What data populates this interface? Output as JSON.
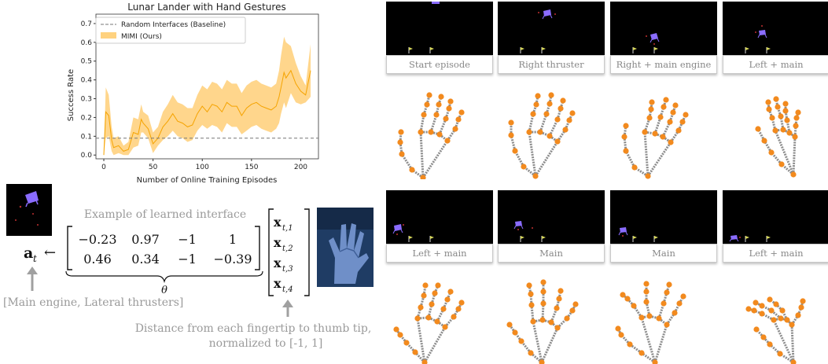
{
  "chart_data": {
    "type": "line",
    "title": "Lunar Lander with Hand Gestures",
    "xlabel": "Number of Online Training Episodes",
    "ylabel": "Success Rate",
    "xlim": [
      -8,
      218
    ],
    "ylim": [
      -0.02,
      0.75
    ],
    "xticks": [
      0,
      50,
      100,
      150,
      200
    ],
    "yticks": [
      0.0,
      0.1,
      0.2,
      0.3,
      0.4,
      0.5,
      0.6,
      0.7
    ],
    "legend_position": "top-left",
    "baseline": {
      "name": "Random Interfaces (Baseline)",
      "value": 0.09,
      "color": "#777777"
    },
    "series": [
      {
        "name": "MIMI (Ours)",
        "color": "#f5a300",
        "band_color": "#ffd27f",
        "x": [
          0,
          2,
          5,
          8,
          10,
          15,
          20,
          25,
          30,
          35,
          38,
          40,
          45,
          50,
          55,
          60,
          65,
          70,
          75,
          80,
          85,
          90,
          95,
          100,
          105,
          110,
          115,
          120,
          125,
          130,
          135,
          140,
          145,
          150,
          155,
          160,
          165,
          170,
          175,
          178,
          180,
          183,
          185,
          190,
          195,
          200,
          205,
          210
        ],
        "values": [
          0.0,
          0.23,
          0.21,
          0.08,
          0.04,
          0.05,
          0.02,
          0.03,
          0.12,
          0.11,
          0.19,
          0.17,
          0.14,
          0.06,
          0.09,
          0.15,
          0.18,
          0.22,
          0.18,
          0.17,
          0.15,
          0.16,
          0.22,
          0.26,
          0.23,
          0.27,
          0.26,
          0.23,
          0.28,
          0.26,
          0.26,
          0.21,
          0.25,
          0.27,
          0.28,
          0.26,
          0.25,
          0.24,
          0.26,
          0.31,
          0.36,
          0.44,
          0.41,
          0.45,
          0.38,
          0.34,
          0.32,
          0.45
        ],
        "lower": [
          0.0,
          0.09,
          0.1,
          0.02,
          0.0,
          0.01,
          0.0,
          0.0,
          0.04,
          0.05,
          0.12,
          0.12,
          0.09,
          0.01,
          0.05,
          0.08,
          0.1,
          0.13,
          0.1,
          0.09,
          0.07,
          0.08,
          0.13,
          0.16,
          0.14,
          0.16,
          0.15,
          0.12,
          0.17,
          0.15,
          0.15,
          0.11,
          0.13,
          0.15,
          0.16,
          0.14,
          0.13,
          0.12,
          0.14,
          0.17,
          0.22,
          0.28,
          0.25,
          0.33,
          0.28,
          0.27,
          0.28,
          0.31
        ],
        "upper": [
          0.0,
          0.36,
          0.32,
          0.15,
          0.09,
          0.1,
          0.05,
          0.07,
          0.2,
          0.19,
          0.27,
          0.23,
          0.21,
          0.12,
          0.15,
          0.23,
          0.27,
          0.32,
          0.28,
          0.27,
          0.25,
          0.25,
          0.32,
          0.37,
          0.35,
          0.39,
          0.38,
          0.35,
          0.4,
          0.38,
          0.38,
          0.33,
          0.37,
          0.39,
          0.4,
          0.38,
          0.37,
          0.36,
          0.38,
          0.45,
          0.53,
          0.63,
          0.6,
          0.58,
          0.49,
          0.42,
          0.37,
          0.59
        ]
      }
    ]
  },
  "interface": {
    "caption_top": "Example of learned interface",
    "action_symbol": "a",
    "action_sub": "t",
    "arrow": "←",
    "matrix": [
      [
        "−0.23",
        "0.97",
        "−1",
        "1"
      ],
      [
        "0.46",
        "0.34",
        "−1",
        "−0.39"
      ]
    ],
    "theta": "θ",
    "vector": [
      {
        "base": "x",
        "sub": "t,1"
      },
      {
        "base": "x",
        "sub": "t,2"
      },
      {
        "base": "x",
        "sub": "t,3"
      },
      {
        "base": "x",
        "sub": "t,4"
      }
    ],
    "caption_action": "[Main engine, Lateral thrusters]",
    "caption_input_line1": "Distance from each fingertip to thumb tip,",
    "caption_input_line2": "normalized to [-1, 1]"
  },
  "panels": [
    {
      "label": "Start episode"
    },
    {
      "label": "Right thruster"
    },
    {
      "label": "Right + main engine"
    },
    {
      "label": "Left + main"
    },
    {
      "label": "Left + main"
    },
    {
      "label": "Main"
    },
    {
      "label": "Main"
    },
    {
      "label": "Left + main"
    }
  ],
  "colors": {
    "bone": "#8c8c8c",
    "joint": "#f28a1e",
    "lander": "#8a6cff",
    "flag": "#d8d85a"
  }
}
